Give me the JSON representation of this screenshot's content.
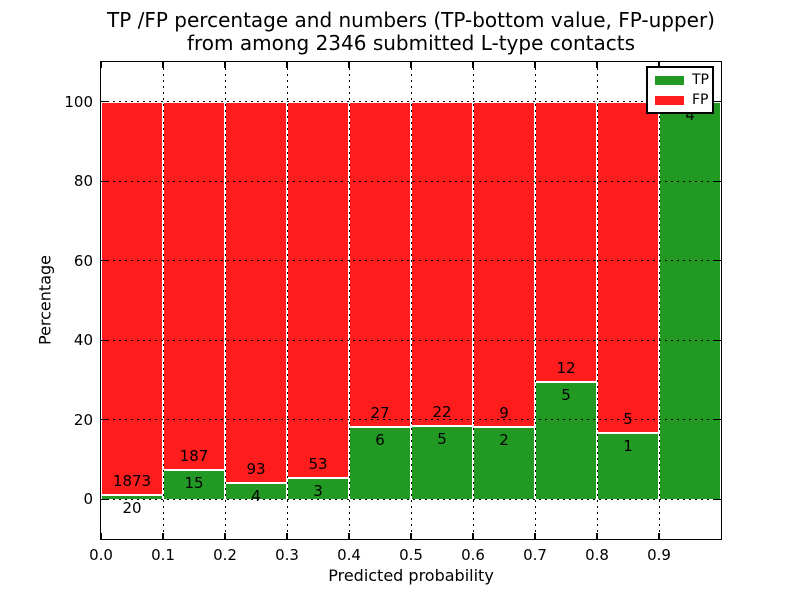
{
  "figure": {
    "title_line1": "TP /FP percentage and numbers (TP-bottom value, FP-upper)",
    "title_line2": "from among 2346 submitted L-type contacts"
  },
  "axes": {
    "xlabel": "Predicted probability",
    "ylabel": "Percentage",
    "xticklabels": [
      "0.0",
      "0.1",
      "0.2",
      "0.3",
      "0.4",
      "0.5",
      "0.6",
      "0.7",
      "0.8",
      "0.9"
    ],
    "yticklabels": [
      "0",
      "20",
      "40",
      "60",
      "80",
      "100"
    ]
  },
  "legend": {
    "items": [
      {
        "label": "TP",
        "color": "#229922"
      },
      {
        "label": "FP",
        "color": "#FF1C1C"
      }
    ]
  },
  "chart_data": {
    "type": "bar",
    "stacked": true,
    "title": "TP /FP percentage and numbers (TP-bottom value, FP-upper) from among 2346 submitted L-type contacts",
    "xlabel": "Predicted probability",
    "ylabel": "Percentage",
    "total_contacts": 2346,
    "bin_edges": [
      0.0,
      0.1,
      0.2,
      0.3,
      0.4,
      0.5,
      0.6,
      0.7,
      0.8,
      0.9,
      1.0
    ],
    "xticks": [
      0.0,
      0.1,
      0.2,
      0.3,
      0.4,
      0.5,
      0.6,
      0.7,
      0.8,
      0.9
    ],
    "yticks": [
      0,
      20,
      40,
      60,
      80,
      100
    ],
    "xlim": [
      0.0,
      1.0
    ],
    "ylim": [
      -10,
      110
    ],
    "grid": "dotted",
    "legend_position": "upper-right",
    "series": [
      {
        "name": "TP",
        "color": "#229922",
        "counts": [
          20,
          15,
          4,
          3,
          6,
          5,
          2,
          5,
          1,
          4
        ],
        "pct": [
          1.06,
          7.43,
          4.12,
          5.36,
          18.18,
          18.52,
          18.18,
          29.41,
          16.67,
          100.0
        ]
      },
      {
        "name": "FP",
        "color": "#FF1C1C",
        "counts": [
          1873,
          187,
          93,
          53,
          27,
          22,
          9,
          12,
          5,
          0
        ],
        "pct": [
          98.94,
          92.57,
          95.88,
          94.64,
          81.82,
          81.48,
          81.82,
          70.59,
          83.33,
          0.0
        ]
      }
    ]
  }
}
